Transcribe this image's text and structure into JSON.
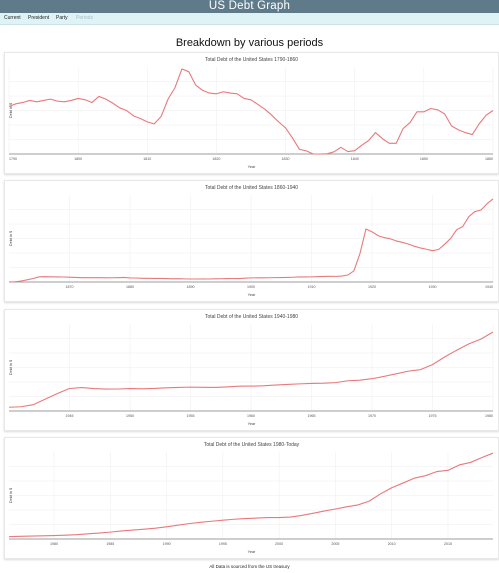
{
  "header": {
    "title": "US Debt Graph"
  },
  "nav": {
    "tabs": [
      {
        "label": "Current"
      },
      {
        "label": "President"
      },
      {
        "label": "Party"
      },
      {
        "label": "Periods"
      }
    ]
  },
  "page": {
    "heading": "Breakdown by various periods",
    "footer": "All Data is sourced from the US treasury"
  },
  "colors": {
    "line": "#e8797c",
    "header_bg": "#5f7a89",
    "nav_bg": "#dff3f6"
  },
  "chart_data": [
    {
      "type": "line",
      "title": "Total Debt of the United States 1790-1860",
      "xlabel": "Year",
      "ylabel": "Debt in $",
      "xlim": [
        1790,
        1860
      ],
      "ylim": [
        0,
        130000000
      ],
      "xticks": [
        1790,
        1800,
        1810,
        1820,
        1830,
        1840,
        1850,
        1860
      ],
      "grid": true,
      "series": [
        {
          "x": [
            1790,
            1791,
            1792,
            1793,
            1794,
            1795,
            1796,
            1797,
            1798,
            1799,
            1800,
            1801,
            1802,
            1803,
            1804,
            1805,
            1806,
            1807,
            1808,
            1809,
            1810,
            1811,
            1812,
            1813,
            1814,
            1815,
            1816,
            1817,
            1818,
            1819,
            1820,
            1821,
            1822,
            1823,
            1824,
            1825,
            1826,
            1827,
            1828,
            1829,
            1830,
            1831,
            1832,
            1833,
            1834,
            1835,
            1836,
            1837,
            1838,
            1839,
            1840,
            1841,
            1842,
            1843,
            1844,
            1845,
            1846,
            1847,
            1848,
            1849,
            1850,
            1851,
            1852,
            1853,
            1854,
            1855,
            1856,
            1857,
            1858,
            1859,
            1860
          ],
          "y": [
            71000000,
            75000000,
            77000000,
            80000000,
            78000000,
            80000000,
            82000000,
            79000000,
            78000000,
            80000000,
            83000000,
            81000000,
            77000000,
            86000000,
            82000000,
            76000000,
            69000000,
            65000000,
            57000000,
            53000000,
            48000000,
            45000000,
            56000000,
            82000000,
            99000000,
            127000000,
            123000000,
            103000000,
            95000000,
            91000000,
            90000000,
            93000000,
            91000000,
            90000000,
            83000000,
            81000000,
            74000000,
            67000000,
            58000000,
            48000000,
            39000000,
            24000000,
            7000000,
            4700000,
            0,
            0,
            300000,
            3300000,
            10000000,
            3600000,
            5000000,
            13000000,
            20000000,
            32000000,
            23000000,
            16000000,
            16000000,
            38000000,
            47000000,
            63000000,
            63000000,
            68000000,
            66000000,
            60000000,
            42000000,
            36000000,
            32000000,
            29000000,
            45000000,
            58000000,
            65000000
          ]
        }
      ]
    },
    {
      "type": "line",
      "title": "Total Debt of the United States 1860-1940",
      "xlabel": "Year",
      "ylabel": "Debt in $",
      "xlim": [
        1860,
        1940
      ],
      "ylim": [
        0,
        45000000000
      ],
      "xticks": [
        1870,
        1880,
        1890,
        1900,
        1910,
        1920,
        1930,
        1940
      ],
      "grid": true,
      "series": [
        {
          "x": [
            1860,
            1861,
            1862,
            1863,
            1864,
            1865,
            1866,
            1867,
            1868,
            1869,
            1870,
            1871,
            1872,
            1873,
            1874,
            1875,
            1876,
            1877,
            1878,
            1879,
            1880,
            1881,
            1882,
            1883,
            1884,
            1885,
            1886,
            1887,
            1888,
            1889,
            1890,
            1891,
            1892,
            1893,
            1894,
            1895,
            1896,
            1897,
            1898,
            1899,
            1900,
            1901,
            1902,
            1903,
            1904,
            1905,
            1906,
            1907,
            1908,
            1909,
            1910,
            1911,
            1912,
            1913,
            1914,
            1915,
            1916,
            1917,
            1918,
            1919,
            1920,
            1921,
            1922,
            1923,
            1924,
            1925,
            1926,
            1927,
            1928,
            1929,
            1930,
            1931,
            1932,
            1933,
            1934,
            1935,
            1936,
            1937,
            1938,
            1939,
            1940
          ],
          "y": [
            65000000,
            90000000,
            524000000,
            1120000000,
            1816000000,
            2678000000,
            2773000000,
            2678000000,
            2611000000,
            2588000000,
            2481000000,
            2353000000,
            2253000000,
            2234000000,
            2251000000,
            2232000000,
            2180000000,
            2205000000,
            2256000000,
            2349000000,
            2120000000,
            2069000000,
            1918000000,
            1884000000,
            1830000000,
            1863000000,
            1775000000,
            1657000000,
            1692000000,
            1619000000,
            1552000000,
            1546000000,
            1588000000,
            1545000000,
            1632000000,
            1676000000,
            1769000000,
            1817000000,
            1796000000,
            1991000000,
            2136000000,
            2143000000,
            2158000000,
            2202000000,
            2264000000,
            2274000000,
            2337000000,
            2457000000,
            2626000000,
            2639000000,
            2652000000,
            2765000000,
            2868000000,
            2916000000,
            2912000000,
            3058000000,
            3609000000,
            5718000000,
            14592000000,
            27391000000,
            25952000000,
            23977000000,
            22964000000,
            22350000000,
            21251000000,
            20516000000,
            19643000000,
            18512000000,
            17604000000,
            16931000000,
            16185000000,
            16801000000,
            19487000000,
            22539000000,
            27053000000,
            28701000000,
            33779000000,
            36425000000,
            37165000000,
            40440000000,
            42968000000
          ]
        }
      ]
    },
    {
      "type": "line",
      "title": "Total Debt of the United States 1940-1980",
      "xlabel": "Year",
      "ylabel": "Debt in $",
      "xlim": [
        1940,
        1980
      ],
      "ylim": [
        0,
        1000000000000
      ],
      "xticks": [
        1945,
        1950,
        1955,
        1960,
        1965,
        1970,
        1975,
        1980
      ],
      "grid": true,
      "series": [
        {
          "x": [
            1940,
            1941,
            1942,
            1943,
            1944,
            1945,
            1946,
            1947,
            1948,
            1949,
            1950,
            1951,
            1952,
            1953,
            1954,
            1955,
            1956,
            1957,
            1958,
            1959,
            1960,
            1961,
            1962,
            1963,
            1964,
            1965,
            1966,
            1967,
            1968,
            1969,
            1970,
            1971,
            1972,
            1973,
            1974,
            1975,
            1976,
            1977,
            1978,
            1979,
            1980
          ],
          "y": [
            42968000000,
            48961000000,
            72422000000,
            136696000000,
            201003000000,
            258682000000,
            269422000000,
            258286000000,
            252292000000,
            252770000000,
            257357000000,
            255222000000,
            259105000000,
            266071000000,
            271260000000,
            274374000000,
            272751000000,
            270527000000,
            276343000000,
            284706000000,
            286331000000,
            288971000000,
            298201000000,
            305860000000,
            311713000000,
            317274000000,
            319907000000,
            326221000000,
            347578000000,
            353720000000,
            370919000000,
            398130000000,
            427260000000,
            458142000000,
            475060000000,
            533189000000,
            620433000000,
            698840000000,
            771544000000,
            826519000000,
            907701000000
          ]
        }
      ]
    },
    {
      "type": "line",
      "title": "Total Debt of the United States 1980-Today",
      "xlabel": "Year",
      "ylabel": "Debt in $",
      "xlim": [
        1976,
        2019
      ],
      "ylim": [
        0,
        23000000000000
      ],
      "xticks": [
        1980,
        1985,
        1990,
        1995,
        2000,
        2005,
        2010,
        2015
      ],
      "grid": true,
      "series": [
        {
          "x": [
            1976,
            1977,
            1978,
            1979,
            1980,
            1981,
            1982,
            1983,
            1984,
            1985,
            1986,
            1987,
            1988,
            1989,
            1990,
            1991,
            1992,
            1993,
            1994,
            1995,
            1996,
            1997,
            1998,
            1999,
            2000,
            2001,
            2002,
            2003,
            2004,
            2005,
            2006,
            2007,
            2008,
            2009,
            2010,
            2011,
            2012,
            2013,
            2014,
            2015,
            2016,
            2017,
            2018,
            2019
          ],
          "y": [
            620000000000,
            700000000000,
            770000000000,
            830000000000,
            908000000000,
            998000000000,
            1140000000000,
            1370000000000,
            1560000000000,
            1820000000000,
            2120000000000,
            2350000000000,
            2600000000000,
            2860000000000,
            3230000000000,
            3660000000000,
            4060000000000,
            4410000000000,
            4690000000000,
            4970000000000,
            5220000000000,
            5410000000000,
            5530000000000,
            5660000000000,
            5670000000000,
            5810000000000,
            6230000000000,
            6780000000000,
            7380000000000,
            7930000000000,
            8510000000000,
            9010000000000,
            10020000000000,
            11910000000000,
            13560000000000,
            14790000000000,
            16070000000000,
            16740000000000,
            17820000000000,
            18150000000000,
            19570000000000,
            20240000000000,
            21520000000000,
            22720000000000
          ]
        }
      ]
    }
  ]
}
